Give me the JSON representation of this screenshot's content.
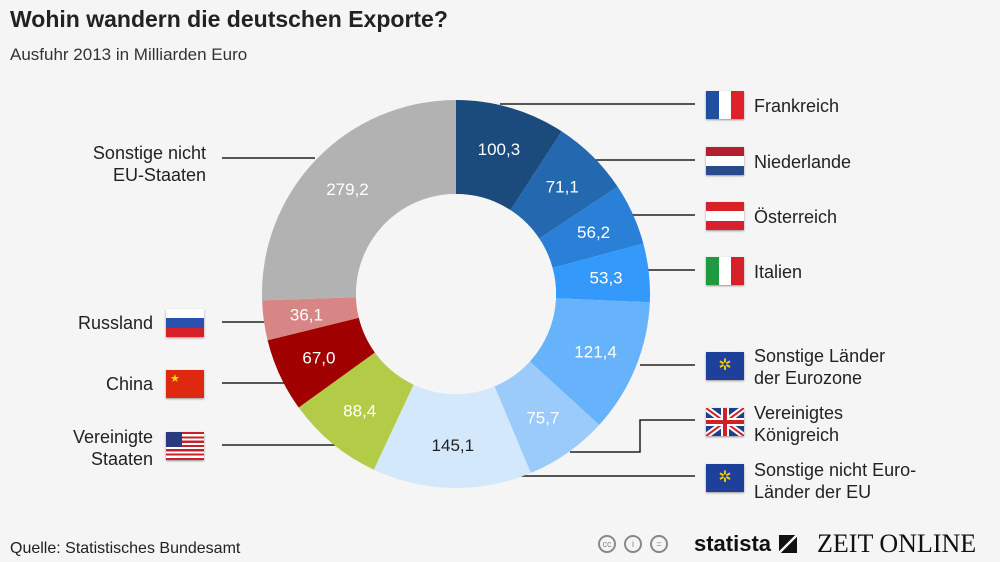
{
  "chart_data": {
    "type": "pie",
    "variant": "donut",
    "title": "Wohin wandern die deutschen Exporte?",
    "subtitle": "Ausfuhr 2013 in Milliarden Euro",
    "slices": [
      {
        "label": "Frankreich",
        "value": 100.3,
        "display": "100,3",
        "color": "#1b4a7c",
        "flag": "fr"
      },
      {
        "label": "Niederlande",
        "value": 71.1,
        "display": "71,1",
        "color": "#2468b0",
        "flag": "nl"
      },
      {
        "label": "Österreich",
        "value": 56.2,
        "display": "56,2",
        "color": "#2a80d6",
        "flag": "at"
      },
      {
        "label": "Italien",
        "value": 53.3,
        "display": "53,3",
        "color": "#3399fb",
        "flag": "it"
      },
      {
        "label": "Sonstige Länder der Eurozone",
        "value": 121.4,
        "display": "121,4",
        "color": "#66b2fb",
        "flag": "eu"
      },
      {
        "label": "Vereinigtes Königreich",
        "value": 75.7,
        "display": "75,7",
        "color": "#9acbfa",
        "flag": "uk"
      },
      {
        "label": "Sonstige nicht Euro-Länder der EU",
        "value": 145.1,
        "display": "145,1",
        "color": "#d3e8fb",
        "flag": "eu",
        "dark_text": true
      },
      {
        "label": "Vereinigte Staaten",
        "value": 88.4,
        "display": "88,4",
        "color": "#b3cc48",
        "flag": "us"
      },
      {
        "label": "China",
        "value": 67.0,
        "display": "67,0",
        "color": "#a10000",
        "flag": "cn"
      },
      {
        "label": "Russland",
        "value": 36.1,
        "display": "36,1",
        "color": "#d88585",
        "flag": "ru"
      },
      {
        "label": "Sonstige nicht EU-Staaten",
        "value": 279.2,
        "display": "279,2",
        "color": "#b2b2b2",
        "flag": null
      }
    ]
  },
  "labels": {
    "fr": "Frankreich",
    "nl": "Niederlande",
    "at": "Österreich",
    "it": "Italien",
    "eurozone_1": "Sonstige Länder",
    "eurozone_2": "der Eurozone",
    "uk_1": "Vereinigtes",
    "uk_2": "Königreich",
    "noneuro_1": "Sonstige nicht Euro-",
    "noneuro_2": "Länder der EU",
    "us_1": "Vereinigte",
    "us_2": "Staaten",
    "cn": "China",
    "ru": "Russland",
    "other_1": "Sonstige nicht",
    "other_2": "EU-Staaten"
  },
  "footer": {
    "source": "Quelle: Statistisches Bundesamt",
    "brand1": "statista",
    "brand2": "ZEIT ONLINE"
  }
}
